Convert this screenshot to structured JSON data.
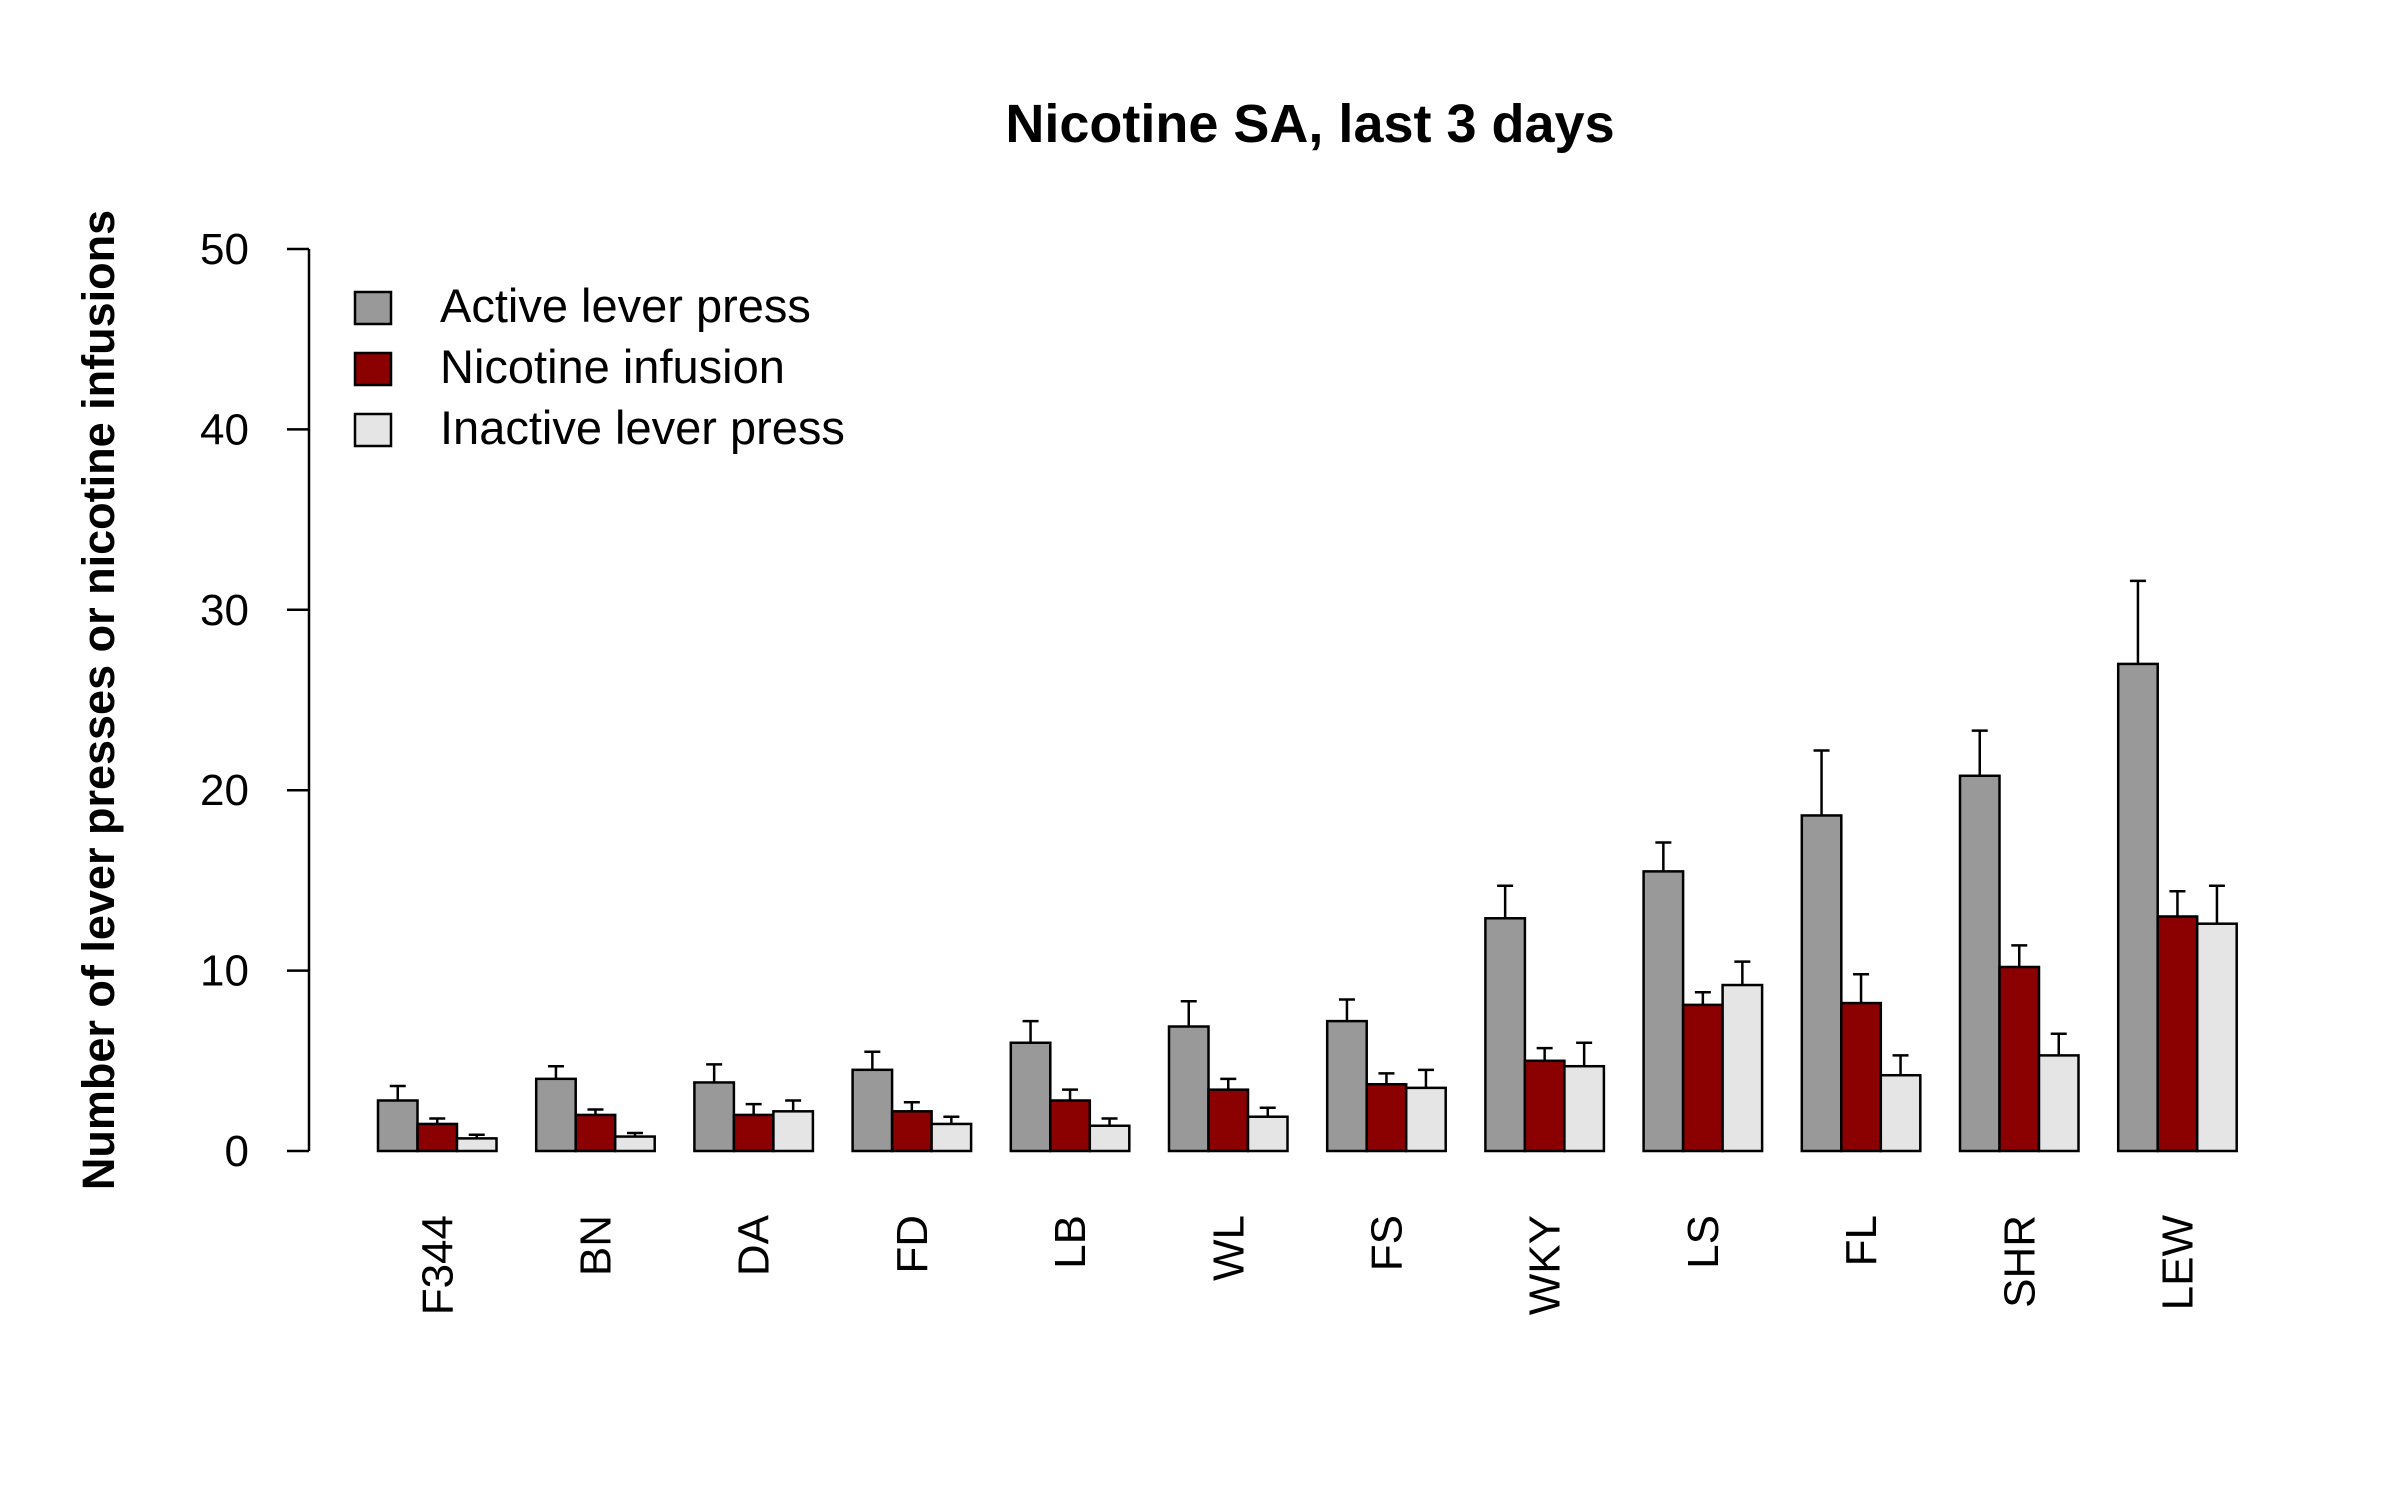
{
  "chart_data": {
    "type": "bar",
    "title": "Nicotine SA, last 3 days",
    "xlabel": "",
    "ylabel": "Number of lever presses or nicotine infusions",
    "ylim": [
      0,
      50
    ],
    "yticks": [
      0,
      10,
      20,
      30,
      40,
      50
    ],
    "grid": false,
    "legend_position": "top-left",
    "categories": [
      "F344",
      "BN",
      "DA",
      "FD",
      "LB",
      "WL",
      "FS",
      "WKY",
      "LS",
      "FL",
      "SHR",
      "LEW"
    ],
    "series": [
      {
        "name": "Active lever press",
        "color": "#999999",
        "values": [
          2.8,
          4.0,
          3.8,
          4.5,
          6.0,
          6.9,
          7.2,
          12.9,
          15.5,
          18.6,
          20.8,
          27.0
        ],
        "errors": [
          0.8,
          0.7,
          1.0,
          1.0,
          1.2,
          1.4,
          1.2,
          1.8,
          1.6,
          3.6,
          2.5,
          4.6
        ]
      },
      {
        "name": "Nicotine infusion",
        "color": "#8b0000",
        "values": [
          1.5,
          2.0,
          2.0,
          2.2,
          2.8,
          3.4,
          3.7,
          5.0,
          8.1,
          8.2,
          10.2,
          13.0
        ],
        "errors": [
          0.3,
          0.3,
          0.6,
          0.5,
          0.6,
          0.6,
          0.6,
          0.7,
          0.7,
          1.6,
          1.2,
          1.4
        ]
      },
      {
        "name": "Inactive lever press",
        "color": "#e5e5e5",
        "values": [
          0.7,
          0.8,
          2.2,
          1.5,
          1.4,
          1.9,
          3.5,
          4.7,
          9.2,
          4.2,
          5.3,
          12.6
        ],
        "errors": [
          0.2,
          0.2,
          0.6,
          0.4,
          0.4,
          0.5,
          1.0,
          1.3,
          1.3,
          1.1,
          1.2,
          2.1
        ]
      }
    ]
  }
}
